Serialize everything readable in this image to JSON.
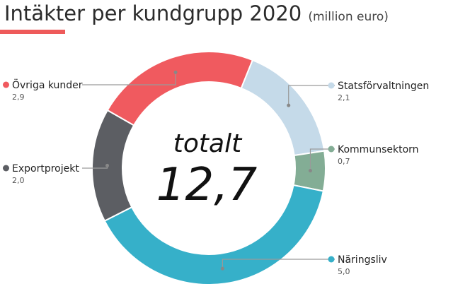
{
  "header": {
    "title": "Intäkter per kundgrupp 2020",
    "unit": "(million euro)",
    "accent_color": "#ee5a5a"
  },
  "center": {
    "label": "totalt",
    "value": "12,7"
  },
  "chart_data": {
    "type": "pie",
    "title": "Intäkter per kundgrupp 2020",
    "subtitle": "(million euro)",
    "total": 12.7,
    "slices": [
      {
        "name": "Statsförvaltningen",
        "value": 2.1,
        "display": "2,1",
        "color": "#c5dae9"
      },
      {
        "name": "Kommunsektorn",
        "value": 0.7,
        "display": "0,7",
        "color": "#83ad95"
      },
      {
        "name": "Näringsliv",
        "value": 5.0,
        "display": "5,0",
        "color": "#36b0c9"
      },
      {
        "name": "Exportprojekt",
        "value": 2.0,
        "display": "2,0",
        "color": "#5c5e63"
      },
      {
        "name": "Övriga kunder",
        "value": 2.9,
        "display": "2,9",
        "color": "#f05a5f"
      }
    ]
  }
}
